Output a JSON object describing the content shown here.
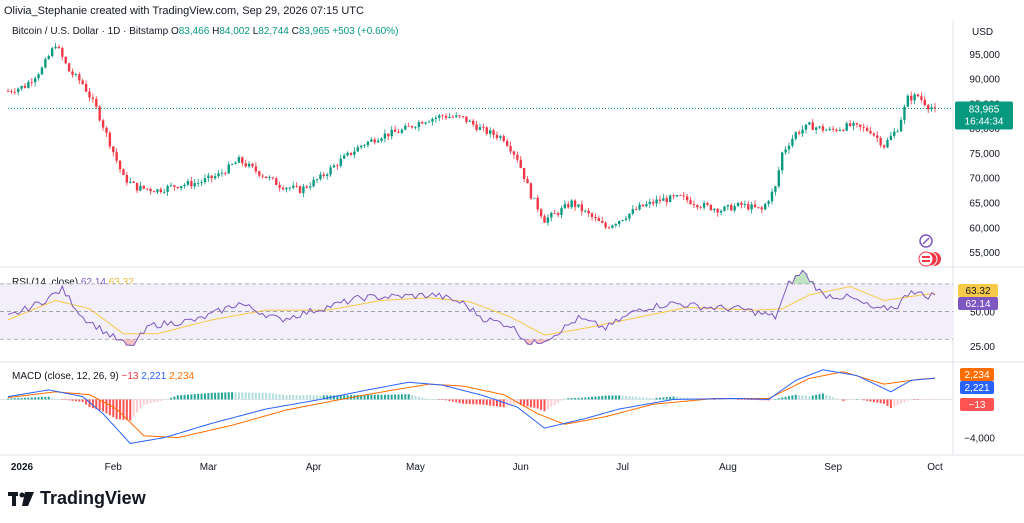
{
  "header": {
    "attribution": "Olivia_Stephanie created with TradingView.com, Sep 29, 2026 07:15 UTC"
  },
  "symbol": {
    "name": "Bitcoin / U.S. Dollar · 1D · Bitstamp",
    "o_label": "O",
    "o": "83,466",
    "h_label": "H",
    "h": "84,002",
    "l_label": "L",
    "l": "82,744",
    "c_label": "C",
    "c": "83,965",
    "change": "+503 (+0.60%)"
  },
  "price_axis": {
    "currency": "USD",
    "ticks": [
      "95,000",
      "90,000",
      "85,000",
      "80,000",
      "75,000",
      "70,000",
      "65,000",
      "60,000",
      "55,000"
    ],
    "last_price": "83,965",
    "countdown": "16:44:34"
  },
  "rsi": {
    "title": "RSI (14, close)",
    "value": "62.14",
    "ma_value": "63.32",
    "ticks": [
      "50.00",
      "25.00"
    ]
  },
  "macd": {
    "title": "MACD (close, 12, 26, 9)",
    "histogram": "−13",
    "macd": "2,221",
    "signal": "2,234",
    "axis_tick": "−4,000"
  },
  "time_axis": [
    "2026",
    "Feb",
    "Mar",
    "Apr",
    "May",
    "Jun",
    "Jul",
    "Aug",
    "Sep",
    "Oct"
  ],
  "brand": {
    "name": "TradingView"
  },
  "colors": {
    "up": "#089981",
    "down": "#f23645",
    "rsi": "#7e57c2",
    "rsi_ma": "#f7c948",
    "macd": "#2962ff",
    "signal": "#ff6d00",
    "rsi_band": "#f3effa"
  },
  "chart_data": [
    {
      "type": "candlestick",
      "title": "Bitcoin / U.S. Dollar · 1D · Bitstamp",
      "ylabel": "USD",
      "ylim": [
        53000,
        99000
      ],
      "x": [
        "2026-01",
        "2026-02",
        "2026-03",
        "2026-04",
        "2026-05",
        "2026-06",
        "2026-07",
        "2026-08",
        "2026-09",
        "2026-09-29"
      ],
      "close_path": [
        [
          0,
          87500
        ],
        [
          5,
          88500
        ],
        [
          10,
          92000
        ],
        [
          14,
          97000
        ],
        [
          18,
          91500
        ],
        [
          22,
          89000
        ],
        [
          26,
          84000
        ],
        [
          30,
          77000
        ],
        [
          34,
          70000
        ],
        [
          38,
          68000
        ],
        [
          44,
          67500
        ],
        [
          50,
          68500
        ],
        [
          56,
          69000
        ],
        [
          62,
          70500
        ],
        [
          68,
          73500
        ],
        [
          74,
          71000
        ],
        [
          80,
          68500
        ],
        [
          86,
          67500
        ],
        [
          92,
          70000
        ],
        [
          98,
          73500
        ],
        [
          104,
          76500
        ],
        [
          110,
          78500
        ],
        [
          116,
          79500
        ],
        [
          122,
          81500
        ],
        [
          128,
          82500
        ],
        [
          134,
          82000
        ],
        [
          140,
          79500
        ],
        [
          146,
          78000
        ],
        [
          150,
          74000
        ],
        [
          154,
          66500
        ],
        [
          158,
          61500
        ],
        [
          162,
          63000
        ],
        [
          166,
          65000
        ],
        [
          170,
          63000
        ],
        [
          176,
          60000
        ],
        [
          180,
          61500
        ],
        [
          186,
          64000
        ],
        [
          192,
          65500
        ],
        [
          198,
          66000
        ],
        [
          204,
          64500
        ],
        [
          210,
          63500
        ],
        [
          216,
          64500
        ],
        [
          222,
          63500
        ],
        [
          226,
          68000
        ],
        [
          228,
          75000
        ],
        [
          232,
          79000
        ],
        [
          236,
          80500
        ],
        [
          242,
          79500
        ],
        [
          248,
          80500
        ],
        [
          254,
          79500
        ],
        [
          258,
          76500
        ],
        [
          262,
          80000
        ],
        [
          265,
          86000
        ],
        [
          268,
          86500
        ],
        [
          271,
          84500
        ],
        [
          273,
          83965
        ]
      ],
      "last": 83965
    },
    {
      "type": "line",
      "title": "RSI (14, close)",
      "ylim": [
        15,
        80
      ],
      "series": [
        {
          "name": "RSI",
          "values": [
            [
              0,
              46
            ],
            [
              10,
              57
            ],
            [
              16,
              66
            ],
            [
              22,
              46
            ],
            [
              30,
              33
            ],
            [
              36,
              24
            ],
            [
              42,
              40
            ],
            [
              56,
              44
            ],
            [
              68,
              56
            ],
            [
              80,
              44
            ],
            [
              92,
              52
            ],
            [
              104,
              60
            ],
            [
              116,
              61
            ],
            [
              126,
              62
            ],
            [
              134,
              56
            ],
            [
              140,
              45
            ],
            [
              148,
              40
            ],
            [
              154,
              26
            ],
            [
              160,
              32
            ],
            [
              168,
              45
            ],
            [
              176,
              38
            ],
            [
              186,
              52
            ],
            [
              196,
              56
            ],
            [
              206,
              53
            ],
            [
              216,
              52
            ],
            [
              226,
              46
            ],
            [
              230,
              70
            ],
            [
              234,
              79
            ],
            [
              240,
              62
            ],
            [
              248,
              60
            ],
            [
              256,
              51
            ],
            [
              262,
              54
            ],
            [
              266,
              66
            ],
            [
              270,
              61
            ],
            [
              273,
              62.14
            ]
          ]
        },
        {
          "name": "RSI-based MA",
          "values": [
            [
              0,
              44
            ],
            [
              14,
              58
            ],
            [
              24,
              52
            ],
            [
              34,
              34
            ],
            [
              44,
              34
            ],
            [
              60,
              44
            ],
            [
              76,
              51
            ],
            [
              94,
              51
            ],
            [
              110,
              58
            ],
            [
              124,
              60
            ],
            [
              136,
              57
            ],
            [
              148,
              46
            ],
            [
              158,
              33
            ],
            [
              170,
              38
            ],
            [
              184,
              45
            ],
            [
              200,
              53
            ],
            [
              220,
              51
            ],
            [
              228,
              52
            ],
            [
              236,
              62
            ],
            [
              248,
              68
            ],
            [
              258,
              58
            ],
            [
              273,
              63.32
            ]
          ]
        }
      ]
    },
    {
      "type": "line",
      "title": "MACD (close, 12, 26, 9)",
      "ylim": [
        -5500,
        3500
      ],
      "series": [
        {
          "name": "MACD",
          "values": [
            [
              0,
              300
            ],
            [
              12,
              1000
            ],
            [
              22,
              300
            ],
            [
              28,
              -1500
            ],
            [
              36,
              -4600
            ],
            [
              46,
              -4000
            ],
            [
              60,
              -2500
            ],
            [
              76,
              -1000
            ],
            [
              92,
              0
            ],
            [
              106,
              1000
            ],
            [
              118,
              1800
            ],
            [
              128,
              1500
            ],
            [
              140,
              400
            ],
            [
              150,
              -800
            ],
            [
              158,
              -3000
            ],
            [
              170,
              -2000
            ],
            [
              180,
              -1000
            ],
            [
              196,
              0
            ],
            [
              214,
              100
            ],
            [
              224,
              0
            ],
            [
              232,
              2000
            ],
            [
              240,
              3100
            ],
            [
              250,
              2500
            ],
            [
              260,
              800
            ],
            [
              266,
              2000
            ],
            [
              273,
              2221
            ]
          ]
        },
        {
          "name": "Signal",
          "values": [
            [
              0,
              200
            ],
            [
              14,
              800
            ],
            [
              24,
              500
            ],
            [
              32,
              -1000
            ],
            [
              40,
              -3800
            ],
            [
              50,
              -4000
            ],
            [
              66,
              -2700
            ],
            [
              82,
              -1100
            ],
            [
              98,
              0
            ],
            [
              112,
              900
            ],
            [
              124,
              1600
            ],
            [
              134,
              1400
            ],
            [
              146,
              500
            ],
            [
              156,
              -1500
            ],
            [
              164,
              -2600
            ],
            [
              176,
              -1800
            ],
            [
              190,
              -500
            ],
            [
              208,
              100
            ],
            [
              224,
              100
            ],
            [
              236,
              2200
            ],
            [
              246,
              2900
            ],
            [
              258,
              1600
            ],
            [
              268,
              2100
            ],
            [
              273,
              2234
            ]
          ]
        },
        {
          "name": "Histogram",
          "values": [
            [
              273,
              -13
            ]
          ]
        }
      ]
    }
  ]
}
